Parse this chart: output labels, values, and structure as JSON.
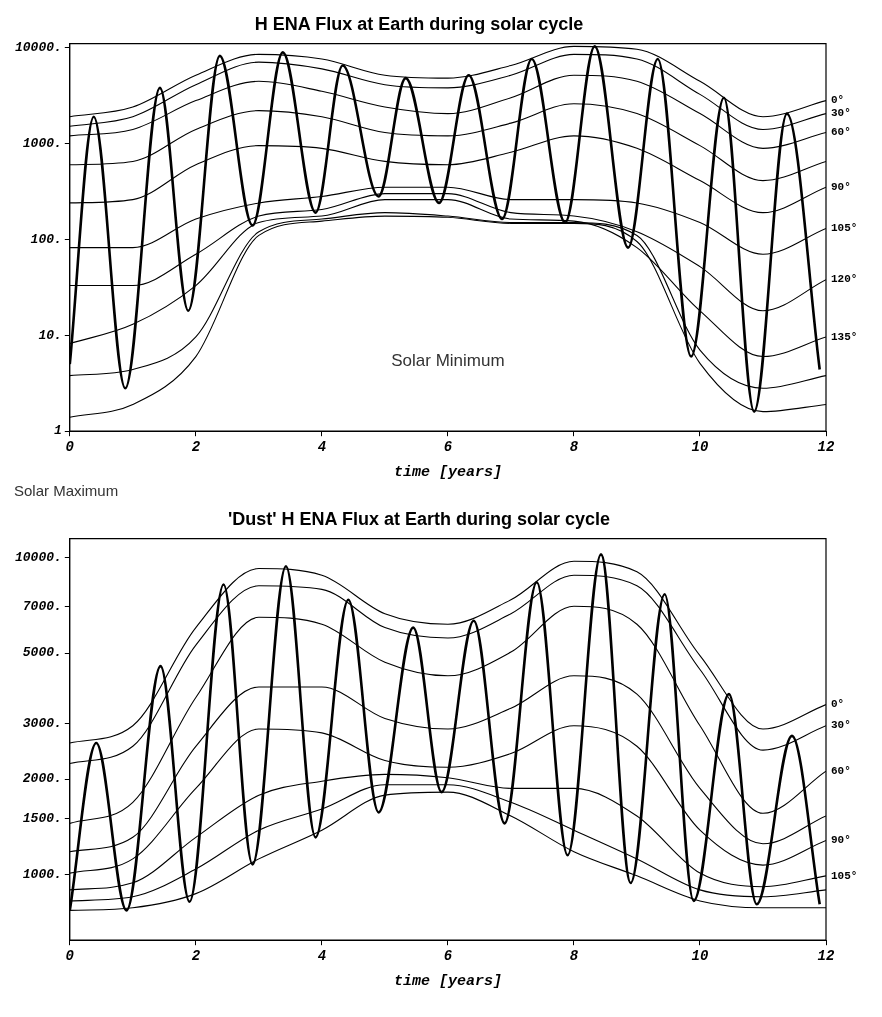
{
  "chart_data": [
    {
      "type": "line",
      "title": "H ENA Flux at Earth during solar cycle",
      "xlabel": "time [years]",
      "xlim": [
        0,
        12
      ],
      "xticks": [
        0,
        2,
        4,
        6,
        8,
        10,
        12
      ],
      "ylim": [
        1,
        11000
      ],
      "yticks": [
        {
          "value": 1,
          "label": "1"
        },
        {
          "value": 10,
          "label": "10."
        },
        {
          "value": 100,
          "label": "100."
        },
        {
          "value": 1000,
          "label": "1000."
        },
        {
          "value": 10000,
          "label": "10000."
        }
      ],
      "log": "y",
      "grid": false,
      "legend": false,
      "marker": "none",
      "line_style": "solid",
      "annotations": [
        "Solar Minimum",
        "Solar Maximum"
      ],
      "x": [
        0,
        1,
        2,
        3,
        4,
        5,
        6,
        7,
        8,
        9,
        10,
        11,
        12
      ],
      "series": [
        {
          "name": "0°",
          "color": "#000000",
          "values": [
            1900,
            2400,
            5150,
            8500,
            7600,
            5150,
            4800,
            6500,
            10300,
            9600,
            4450,
            1900,
            2800
          ]
        },
        {
          "name": "30°",
          "color": "#000000",
          "values": [
            1510,
            1900,
            4100,
            7050,
            6000,
            4100,
            3800,
            5150,
            8500,
            7600,
            3250,
            1400,
            2050
          ]
        },
        {
          "name": "60°",
          "color": "#000000",
          "values": [
            1200,
            1400,
            2800,
            4450,
            3500,
            2400,
            2050,
            3000,
            5150,
            4450,
            2050,
            890,
            1300
          ]
        },
        {
          "color": "#000000",
          "values": [
            600,
            650,
            1400,
            2200,
            1900,
            1300,
            1200,
            1630,
            2600,
            2050,
            950,
            410,
            650
          ]
        },
        {
          "name": "90°",
          "color": "#000000",
          "values": [
            240,
            260,
            600,
            950,
            890,
            650,
            600,
            810,
            1200,
            890,
            410,
            190,
            350
          ]
        },
        {
          "name": "105°",
          "color": "#000000",
          "values": [
            82,
            82,
            163,
            240,
            280,
            350,
            350,
            260,
            260,
            240,
            150,
            70,
            130
          ]
        },
        {
          "name": "120°",
          "color": "#000000",
          "values": [
            33,
            33,
            70,
            175,
            205,
            300,
            300,
            190,
            175,
            120,
            52,
            18,
            38
          ]
        },
        {
          "name": "135°",
          "color": "#000000",
          "values": [
            8.2,
            13,
            33,
            150,
            175,
            260,
            260,
            163,
            155,
            82,
            18,
            6,
            9.6
          ]
        },
        {
          "color": "#000000",
          "values": [
            3.8,
            4.4,
            9.6,
            120,
            163,
            190,
            175,
            150,
            150,
            110,
            7,
            2.8,
            3.8
          ]
        },
        {
          "color": "#000000",
          "values": [
            1.4,
            1.9,
            6,
            110,
            155,
            175,
            170,
            147,
            147,
            95,
            5.1,
            1.6,
            1.9
          ]
        },
        {
          "color": "#000000",
          "x": [
            0,
            0.38,
            0.88,
            1.43,
            1.88,
            2.38,
            2.9,
            3.38,
            3.9,
            4.33,
            4.9,
            5.33,
            5.86,
            6.33,
            6.86,
            7.33,
            7.86,
            8.33,
            8.86,
            9.33,
            9.86,
            10.38,
            10.86,
            11.38,
            11.9
          ],
          "values": [
            5,
            1900,
            2.8,
            3800,
            18,
            8200,
            140,
            8900,
            190,
            6500,
            280,
            4800,
            240,
            5150,
            163,
            7600,
            150,
            10300,
            82,
            7600,
            6,
            3000,
            1.6,
            2050,
            4.4
          ]
        }
      ]
    },
    {
      "type": "line",
      "title": "'Dust' H ENA Flux at Earth during solar cycle",
      "xlabel": "time [years]",
      "xlim": [
        0,
        12
      ],
      "xticks": [
        0,
        2,
        4,
        6,
        8,
        10,
        12
      ],
      "ylim": [
        620,
        11500
      ],
      "yticks": [
        {
          "value": 1000,
          "label": "1000."
        },
        {
          "value": 1500,
          "label": "1500."
        },
        {
          "value": 2000,
          "label": "2000."
        },
        {
          "value": 3000,
          "label": "3000."
        },
        {
          "value": 5000,
          "label": "5000."
        },
        {
          "value": 7000,
          "label": "7000."
        },
        {
          "value": 10000,
          "label": "10000."
        }
      ],
      "log": "y",
      "grid": false,
      "legend": false,
      "marker": "none",
      "line_style": "solid",
      "x": [
        0,
        1,
        2,
        3,
        4,
        5,
        6,
        7,
        8,
        9,
        10,
        11,
        12
      ],
      "series": [
        {
          "name": "0°",
          "color": "#000000",
          "values": [
            2600,
            2950,
            6020,
            9250,
            8810,
            6660,
            6170,
            7370,
            9750,
            9030,
            4910,
            2880,
            3440
          ]
        },
        {
          "name": "30°",
          "color": "#000000",
          "values": [
            2240,
            2540,
            5300,
            8160,
            7950,
            6020,
            5580,
            6660,
            8810,
            8160,
            4440,
            2470,
            2950
          ]
        },
        {
          "name": "60°",
          "color": "#000000",
          "values": [
            1450,
            1690,
            3620,
            6490,
            6170,
            4680,
            4240,
            5040,
            7030,
            6170,
            2950,
            1560,
            2120
          ]
        },
        {
          "color": "#000000",
          "values": [
            1180,
            1310,
            2540,
            3910,
            3910,
            3110,
            2880,
            3350,
            4240,
            3710,
            1870,
            1250,
            1530
          ]
        },
        {
          "name": "90°",
          "color": "#000000",
          "values": [
            1010,
            1120,
            1870,
            2880,
            2800,
            2290,
            2180,
            2410,
            2950,
            2540,
            1380,
            1070,
            1280
          ]
        },
        {
          "name": "105°",
          "color": "#000000",
          "values": [
            894,
            941,
            1310,
            1780,
            1970,
            2070,
            2020,
            1870,
            1870,
            1530,
            1010,
            915,
            990
          ]
        },
        {
          "color": "#000000",
          "values": [
            825,
            850,
            1040,
            1380,
            1610,
            1920,
            1920,
            1690,
            1380,
            1120,
            894,
            850,
            894
          ]
        },
        {
          "color": "#000000",
          "values": [
            770,
            785,
            870,
            1120,
            1380,
            1780,
            1820,
            1530,
            1180,
            990,
            825,
            785,
            785
          ]
        },
        {
          "color": "#000000",
          "x": [
            0,
            0.42,
            0.9,
            1.44,
            1.9,
            2.44,
            2.9,
            3.43,
            3.9,
            4.42,
            4.9,
            5.45,
            5.9,
            6.41,
            6.9,
            7.41,
            7.9,
            8.43,
            8.9,
            9.44,
            9.9,
            10.46,
            10.9,
            11.46,
            11.9
          ],
          "values": [
            770,
            2600,
            770,
            4550,
            820,
            8240,
            1075,
            9410,
            1310,
            7370,
            1570,
            6020,
            1820,
            6330,
            1450,
            8370,
            1150,
            10250,
            940,
            7670,
            825,
            3710,
            805,
            2740,
            805
          ]
        }
      ]
    }
  ]
}
